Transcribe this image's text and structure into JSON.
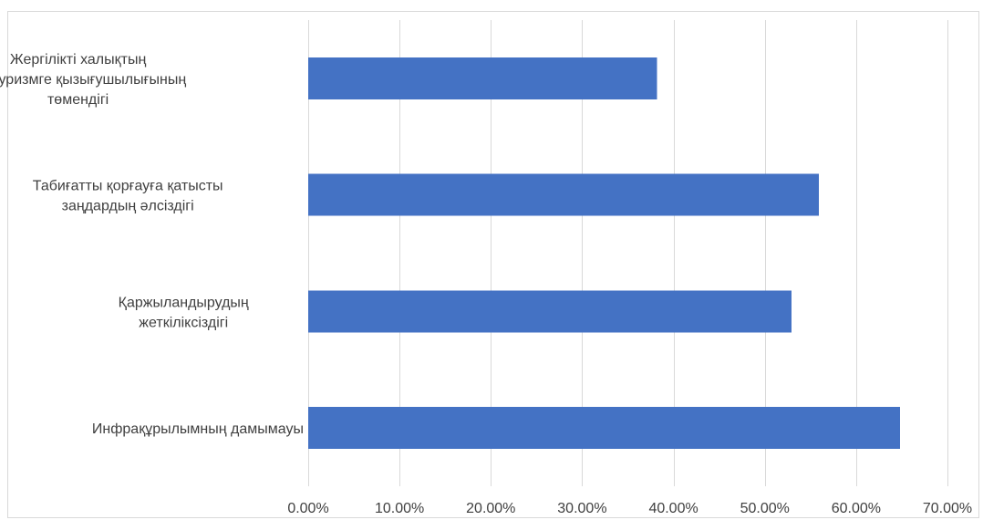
{
  "chart_data": {
    "type": "bar",
    "orientation": "horizontal",
    "categories": [
      [
        "Жергілікті халықтың",
        "экотуризмге қызығушылығының",
        "төмендігі"
      ],
      [
        "Табиғатты қорғауға қатысты",
        "заңдардың әлсіздігі"
      ],
      [
        "Қаржыландырудың",
        "жеткіліксіздігі"
      ],
      [
        "Инфрақұрылымның дамымауы"
      ]
    ],
    "values": [
      0.382,
      0.559,
      0.529,
      0.648
    ],
    "xlim": [
      0,
      0.7
    ],
    "x_ticks": [
      0,
      0.1,
      0.2,
      0.3,
      0.4,
      0.5,
      0.6,
      0.7
    ],
    "tick_labels": [
      "0.00%",
      "10.00%",
      "20.00%",
      "30.00%",
      "40.00%",
      "50.00%",
      "60.00%",
      "70.00%"
    ],
    "grid": true,
    "bar_color": "#4472c4",
    "grid_color": "#d9d9d9",
    "text_color": "#404040",
    "legend": "none"
  }
}
